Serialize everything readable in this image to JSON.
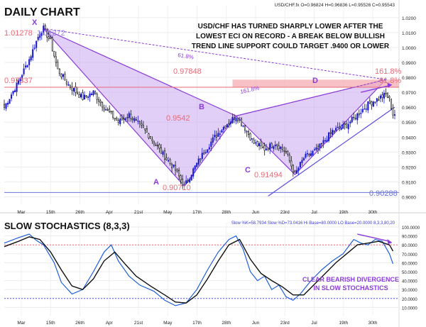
{
  "header": {
    "title": "DAILY CHART",
    "symbol_line": "USD/CHF.fx O=0.96824 H=0.96836 L=0.95526 C=0.95543"
  },
  "annotation": {
    "lines": [
      "USD/CHF HAS TURNED SHARPLY LOWER AFTER THE",
      "LOWEST ECI ON RECORD - A BREAK BELOW BULLISH",
      "TREND LINE SUPPORT COULD TARGET .9400 OR LOWER"
    ],
    "divergence_lines": [
      "CLEAR BEARISH DIVERGENCE",
      "IN SLOW STOCHASTICS"
    ]
  },
  "colors": {
    "bull": "#1a1ad0",
    "bear": "#111111",
    "purple": "#8a3cd6",
    "pink": "#e86a78",
    "fill": "#c9a8f2",
    "band": "#f4a6ae",
    "blue_label": "#6b73d6"
  },
  "price_labels": {
    "x_high_left": "1.01278",
    "x_high_right": "1.01272",
    "x_level": "0.97337",
    "d_level": "0.97848",
    "b_level": "0.9542",
    "a_low": "0.90710",
    "c_low": "0.91494",
    "target": "0.90288",
    "fib_161_right": "161.8%",
    "fib_618_right": "61.8%",
    "fib_618_xd": "61.8%",
    "fib_1618_bd": "161.8%"
  },
  "pattern_points": {
    "X": "X",
    "A": "A",
    "B": "B",
    "C": "C",
    "D": "D"
  },
  "stoch_panel": {
    "title": "SLOW STOCHASTICS (8,3,3)",
    "readout": "Slow %K=58.7934 Slow %D=73.0416 Hi Base=80.0000 LO Base=20.0000 8,3,3,80,20"
  },
  "chart_data": [
    {
      "type": "candlestick",
      "title": "DAILY CHART",
      "instrument": "USD/CHF",
      "ylim": [
        0.895,
        1.028
      ],
      "y_ticks": [
        "1.0200",
        "1.0100",
        "1.0000",
        "0.9900",
        "0.9800",
        "0.9700",
        "0.9600",
        "0.9500",
        "0.9400",
        "0.9300",
        "0.9200",
        "0.9100",
        "0.9000"
      ],
      "y_tick_values": [
        1.02,
        1.01,
        1.0,
        0.99,
        0.98,
        0.97,
        0.96,
        0.95,
        0.94,
        0.93,
        0.92,
        0.91,
        0.9
      ],
      "x_tick_labels": [
        "Mar",
        "15th",
        "26th",
        "Apr",
        "21st",
        "May",
        "17th",
        "28th",
        "Jun",
        "23rd",
        "Jul",
        "19th",
        "30th"
      ],
      "close_path": [
        [
          0,
          0.96
        ],
        [
          7,
          0.975
        ],
        [
          14,
          0.992
        ],
        [
          20,
          1.01
        ],
        [
          22,
          1.0127
        ],
        [
          26,
          1.004
        ],
        [
          30,
          0.985
        ],
        [
          36,
          0.975
        ],
        [
          44,
          0.966
        ],
        [
          50,
          0.97
        ],
        [
          56,
          0.96
        ],
        [
          64,
          0.95
        ],
        [
          70,
          0.955
        ],
        [
          80,
          0.943
        ],
        [
          88,
          0.93
        ],
        [
          96,
          0.918
        ],
        [
          101,
          0.9071
        ],
        [
          106,
          0.918
        ],
        [
          112,
          0.93
        ],
        [
          118,
          0.94
        ],
        [
          124,
          0.948
        ],
        [
          130,
          0.9542
        ],
        [
          134,
          0.948
        ],
        [
          140,
          0.936
        ],
        [
          146,
          0.932
        ],
        [
          152,
          0.936
        ],
        [
          158,
          0.93
        ],
        [
          163,
          0.9149
        ],
        [
          168,
          0.926
        ],
        [
          176,
          0.932
        ],
        [
          184,
          0.944
        ],
        [
          192,
          0.948
        ],
        [
          198,
          0.955
        ],
        [
          204,
          0.962
        ],
        [
          210,
          0.966
        ],
        [
          214,
          0.9685
        ],
        [
          216,
          0.965
        ],
        [
          218,
          0.9554
        ]
      ],
      "levels": [
        {
          "label": "0.97337",
          "value": 0.97337
        },
        {
          "label": "0.97848",
          "value": 0.97848
        },
        {
          "label": "0.90288",
          "value": 0.90288
        }
      ],
      "pattern": [
        {
          "point": "X",
          "value": 1.0127
        },
        {
          "point": "A",
          "value": 0.9071
        },
        {
          "point": "B",
          "value": 0.9542
        },
        {
          "point": "C",
          "value": 0.9149
        },
        {
          "point": "D",
          "value": 0.9785
        }
      ]
    },
    {
      "type": "line",
      "title": "SLOW STOCHASTICS (8,3,3)",
      "ylim": [
        0,
        100
      ],
      "y_ticks": [
        "100.0000",
        "90.0000",
        "80.0000",
        "70.0000",
        "60.0000",
        "50.0000",
        "40.0000",
        "30.0000",
        "20.0000",
        "10.0000"
      ],
      "y_tick_values": [
        100,
        90,
        80,
        70,
        60,
        50,
        40,
        30,
        20,
        10
      ],
      "levels": [
        {
          "label": "Hi Base",
          "value": 80
        },
        {
          "label": "LO Base",
          "value": 20
        }
      ],
      "series": [
        {
          "name": "Slow %K",
          "points": [
            [
              0,
              82
            ],
            [
              8,
              88
            ],
            [
              14,
              92
            ],
            [
              18,
              85
            ],
            [
              22,
              80
            ],
            [
              28,
              60
            ],
            [
              32,
              38
            ],
            [
              38,
              25
            ],
            [
              44,
              30
            ],
            [
              50,
              50
            ],
            [
              56,
              72
            ],
            [
              60,
              80
            ],
            [
              64,
              62
            ],
            [
              70,
              45
            ],
            [
              76,
              35
            ],
            [
              84,
              28
            ],
            [
              90,
              18
            ],
            [
              96,
              12
            ],
            [
              102,
              15
            ],
            [
              108,
              30
            ],
            [
              114,
              52
            ],
            [
              120,
              72
            ],
            [
              126,
              86
            ],
            [
              130,
              90
            ],
            [
              134,
              75
            ],
            [
              138,
              50
            ],
            [
              142,
              40
            ],
            [
              146,
              45
            ],
            [
              150,
              30
            ],
            [
              154,
              35
            ],
            [
              158,
              22
            ],
            [
              162,
              18
            ],
            [
              166,
              25
            ],
            [
              172,
              40
            ],
            [
              178,
              52
            ],
            [
              184,
              62
            ],
            [
              190,
              70
            ],
            [
              196,
              86
            ],
            [
              200,
              82
            ],
            [
              204,
              80
            ],
            [
              208,
              86
            ],
            [
              212,
              84
            ],
            [
              216,
              70
            ],
            [
              218,
              58.8
            ]
          ]
        },
        {
          "name": "Slow %D",
          "points": [
            [
              0,
              78
            ],
            [
              8,
              84
            ],
            [
              14,
              89
            ],
            [
              20,
              86
            ],
            [
              26,
              72
            ],
            [
              32,
              52
            ],
            [
              38,
              34
            ],
            [
              44,
              30
            ],
            [
              50,
              42
            ],
            [
              56,
              62
            ],
            [
              62,
              72
            ],
            [
              68,
              58
            ],
            [
              74,
              45
            ],
            [
              82,
              34
            ],
            [
              90,
              24
            ],
            [
              96,
              16
            ],
            [
              102,
              15
            ],
            [
              108,
              24
            ],
            [
              114,
              42
            ],
            [
              120,
              62
            ],
            [
              126,
              80
            ],
            [
              132,
              86
            ],
            [
              138,
              64
            ],
            [
              144,
              48
            ],
            [
              150,
              40
            ],
            [
              156,
              33
            ],
            [
              162,
              24
            ],
            [
              168,
              24
            ],
            [
              174,
              36
            ],
            [
              180,
              48
            ],
            [
              186,
              60
            ],
            [
              192,
              70
            ],
            [
              198,
              80
            ],
            [
              204,
              82
            ],
            [
              210,
              84
            ],
            [
              216,
              80
            ],
            [
              218,
              73.0
            ]
          ]
        }
      ]
    }
  ]
}
